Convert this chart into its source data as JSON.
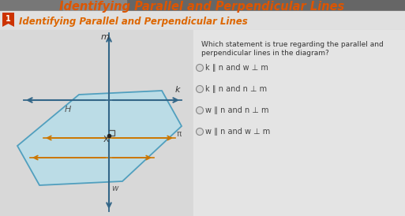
{
  "title": "Identifying Parallel and Perpendicular Lines",
  "subtitle": "Identifying Parallel and Perpendicular Lines",
  "question_line1": "Which statement is true regarding the parallel and",
  "question_line2": "perpendicular lines in the diagram?",
  "options": [
    "k ∥ n and w ⊥ m",
    "k ∥ n and n ⊥ m",
    "w ∥ n and n ⊥ m",
    "w ∥ n and w ⊥ m"
  ],
  "header_bg": "#888888",
  "title_color": "#dd5500",
  "badge_color": "#cc3300",
  "subtitle_color": "#dd6600",
  "content_bg": "#d8d8d8",
  "white_bg": "#f0f0f0",
  "question_color": "#333333",
  "option_color": "#444444",
  "plane_face": "#b8dde8",
  "plane_edge": "#4499bb",
  "line_color": "#336688",
  "orange_color": "#cc7700",
  "dashed_color": "#888888"
}
